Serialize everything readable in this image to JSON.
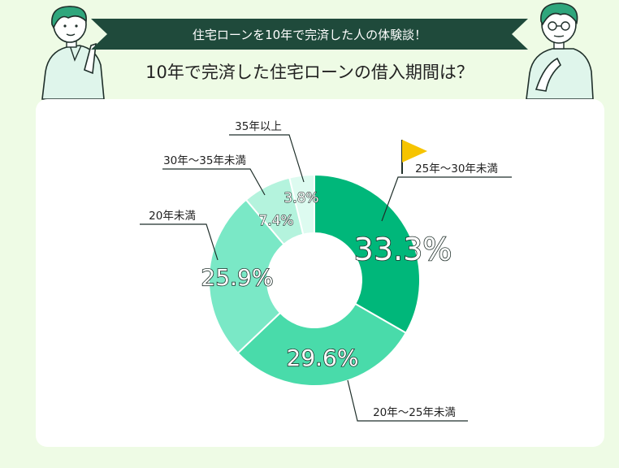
{
  "header": {
    "banner_text": "住宅ローンを10年で完済した人の体験談！",
    "question": "10年で完済した住宅ローンの借入期間は？"
  },
  "colors": {
    "background": "#eefbe5",
    "banner": "#1f4a3b",
    "card": "#ffffff",
    "flag": "#f6c400"
  },
  "chart_data": {
    "type": "pie",
    "style": "donut",
    "slices": [
      {
        "label": "25年〜30年未満",
        "value": 33.3,
        "display": "33.3%",
        "color": "#00b77a"
      },
      {
        "label": "20年〜25年未満",
        "value": 29.6,
        "display": "29.6%",
        "color": "#49dbaa"
      },
      {
        "label": "20年未満",
        "value": 25.9,
        "display": "25.9%",
        "color": "#7ae8c6"
      },
      {
        "label": "30年〜35年未満",
        "value": 7.4,
        "display": "7.4%",
        "color": "#b4f3dd"
      },
      {
        "label": "35年以上",
        "value": 3.8,
        "display": "3.8%",
        "color": "#ddfbf0"
      }
    ],
    "highlight": "25年〜30年未満"
  }
}
